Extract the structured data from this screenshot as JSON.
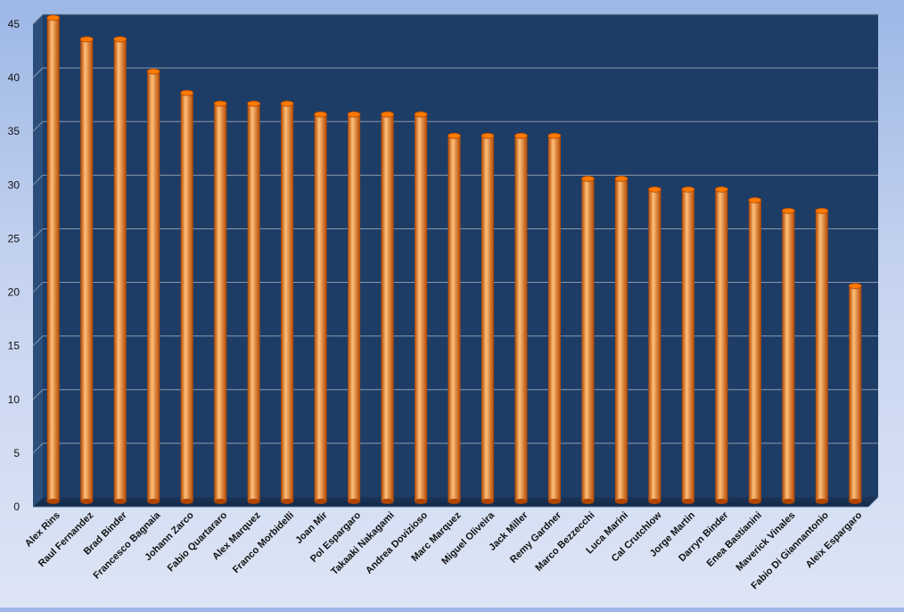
{
  "chart_data": {
    "type": "bar",
    "style": "3d-cylinder",
    "categories": [
      "Alex Rins",
      "Raul Fernandez",
      "Brad Binder",
      "Francesco Bagnaia",
      "Johann Zarco",
      "Fabio Quartararo",
      "Alex Marquez",
      "Franco Morbidelli",
      "Joan Mir",
      "Pol Espargaro",
      "Takaaki Nakagami",
      "Andrea Dovizioso",
      "Marc Marquez",
      "Miguel Oliveira",
      "Jack Miller",
      "Remy Gardner",
      "Marco Bezzecchi",
      "Luca Marini",
      "Cal Crutchlow",
      "Jorge Martin",
      "Darryn Binder",
      "Enea Bastianini",
      "Maverick Vinales",
      "Fabio Di Giannantonio",
      "Aleix Espargaro"
    ],
    "values": [
      45,
      43,
      43,
      40,
      38,
      37,
      37,
      37,
      36,
      36,
      36,
      36,
      34,
      34,
      34,
      34,
      30,
      30,
      29,
      29,
      29,
      28,
      27,
      27,
      20
    ],
    "y_ticks": [
      "0",
      "5",
      "10",
      "15",
      "20",
      "25",
      "30",
      "35",
      "40",
      "45"
    ],
    "ylim": [
      0,
      45
    ],
    "grid": true,
    "legend": "none",
    "title": "",
    "xlabel": "",
    "ylabel": "",
    "colors": {
      "plot_background": "#1e3d66",
      "bar": "#ff7a00",
      "bar_dark": "#b04500",
      "bar_light": "#ffc07a",
      "gridline": "#8a98ae",
      "axis_text": "#111111"
    }
  }
}
